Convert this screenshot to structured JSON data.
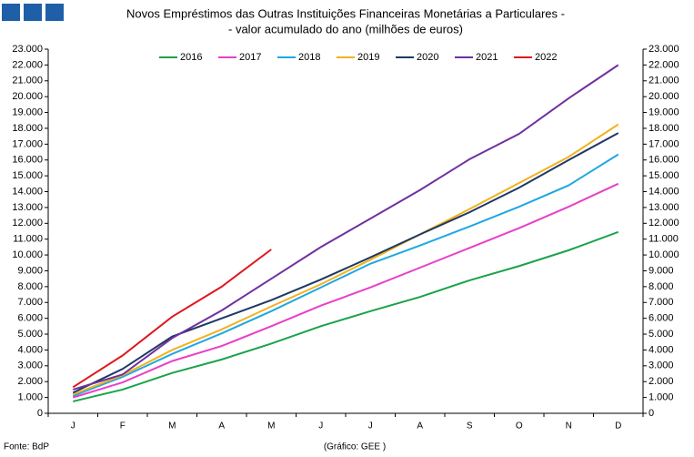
{
  "chart_data": {
    "type": "line",
    "title": "Novos Empréstimos das Outras Instituições Financeiras Monetárias a Particulares -",
    "subtitle": "- valor acumulado do ano (milhões de euros)",
    "source": "Fonte: BdP",
    "credit": "(Gráfico: GEE )",
    "categories": [
      "J",
      "F",
      "M",
      "A",
      "M",
      "J",
      "J",
      "A",
      "S",
      "O",
      "N",
      "D"
    ],
    "series": [
      {
        "name": "2016",
        "color": "#1aa34a",
        "values": [
          750,
          1500,
          2550,
          3400,
          4400,
          5500,
          6450,
          7350,
          8400,
          9300,
          10300,
          11450
        ]
      },
      {
        "name": "2017",
        "color": "#e83fc8",
        "values": [
          1000,
          1950,
          3300,
          4250,
          5500,
          6800,
          7950,
          9200,
          10450,
          11700,
          13050,
          14500
        ]
      },
      {
        "name": "2018",
        "color": "#1ea8e0",
        "values": [
          1100,
          2300,
          3750,
          5050,
          6450,
          7950,
          9450,
          10600,
          11800,
          13050,
          14400,
          16350
        ]
      },
      {
        "name": "2019",
        "color": "#f2b21c",
        "values": [
          1200,
          2400,
          4000,
          5300,
          6750,
          8150,
          9700,
          11300,
          12900,
          14550,
          16200,
          18250
        ]
      },
      {
        "name": "2020",
        "color": "#1f3864",
        "values": [
          1300,
          2800,
          4850,
          6000,
          7150,
          8450,
          9850,
          11300,
          12700,
          14250,
          16000,
          17700
        ]
      },
      {
        "name": "2021",
        "color": "#7030a0",
        "values": [
          1500,
          2450,
          4750,
          6500,
          8500,
          10500,
          12300,
          14100,
          16050,
          17650,
          19900,
          22000
        ]
      },
      {
        "name": "2022",
        "color": "#e0161c",
        "values": [
          1650,
          3650,
          6100,
          8000,
          10350,
          null,
          null,
          null,
          null,
          null,
          null,
          null
        ]
      }
    ],
    "ylim": [
      0,
      23000
    ],
    "yticks": [
      0,
      {
        "value": 1000,
        "label": "1.000"
      },
      {
        "value": 2000,
        "label": "2.000"
      },
      {
        "value": 3000,
        "label": "3.000"
      },
      {
        "value": 4000,
        "label": "4.000"
      },
      {
        "value": 5000,
        "label": "5.000"
      },
      {
        "value": 6000,
        "label": "6.000"
      },
      {
        "value": 7000,
        "label": "7.000"
      },
      {
        "value": 8000,
        "label": "8.000"
      },
      {
        "value": 9000,
        "label": "9.000"
      },
      {
        "value": 10000,
        "label": "10.000"
      },
      {
        "value": 11000,
        "label": "11.000"
      },
      {
        "value": 12000,
        "label": "12.000"
      },
      {
        "value": 13000,
        "label": "13.000"
      },
      {
        "value": 14000,
        "label": "14.000"
      },
      {
        "value": 15000,
        "label": "15.000"
      },
      {
        "value": 16000,
        "label": "16.000"
      },
      {
        "value": 17000,
        "label": "17.000"
      },
      {
        "value": 18000,
        "label": "18.000"
      },
      {
        "value": 19000,
        "label": "19.000"
      },
      {
        "value": 20000,
        "label": "20.000"
      },
      {
        "value": 21000,
        "label": "21.000"
      },
      {
        "value": 22000,
        "label": "22.000"
      },
      {
        "value": 23000,
        "label": "23.000"
      }
    ],
    "y2lim": [
      0,
      23000
    ],
    "y2ticks": [
      0,
      {
        "value": 1000,
        "label": "1.000"
      },
      {
        "value": 2000,
        "label": "2.000"
      },
      {
        "value": 3000,
        "label": "3.000"
      },
      {
        "value": 4000,
        "label": "4.000"
      },
      {
        "value": 5000,
        "label": "5.000"
      },
      {
        "value": 6000,
        "label": "6.000"
      },
      {
        "value": 7000,
        "label": "7.000"
      },
      {
        "value": 8000,
        "label": "8.000"
      },
      {
        "value": 9000,
        "label": "9.000"
      },
      {
        "value": 10000,
        "label": "10.000"
      },
      {
        "value": 11000,
        "label": "11.000"
      },
      {
        "value": 12000,
        "label": "12.000"
      },
      {
        "value": 13000,
        "label": "13.000"
      },
      {
        "value": 14000,
        "label": "14.000"
      },
      {
        "value": 15000,
        "label": "15.000"
      },
      {
        "value": 16000,
        "label": "16.000"
      },
      {
        "value": 17000,
        "label": "17.000"
      },
      {
        "value": 18000,
        "label": "18.000"
      },
      {
        "value": 19000,
        "label": "19.000"
      },
      {
        "value": 20000,
        "label": "20.000"
      },
      {
        "value": 21000,
        "label": "21.000"
      },
      {
        "value": 22000,
        "label": "22.000"
      },
      {
        "value": 23000,
        "label": "23.000"
      }
    ],
    "legend": "top",
    "grid": false
  }
}
